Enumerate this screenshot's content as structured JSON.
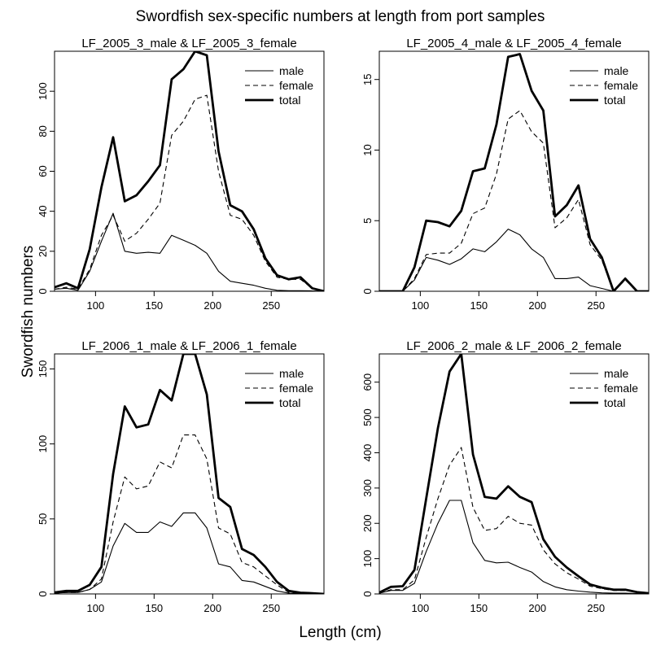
{
  "figure": {
    "title": "Swordfish sex-specific numbers at length from port samples",
    "xlabel": "Length (cm)",
    "ylabel": "Swordfish numbers"
  },
  "legend": {
    "position": "top-right",
    "entries": [
      {
        "key": "male",
        "label": "male",
        "style": "thin-solid"
      },
      {
        "key": "female",
        "label": "female",
        "style": "dashed"
      },
      {
        "key": "total",
        "label": "total",
        "style": "thick-solid"
      }
    ]
  },
  "chart_data": [
    {
      "type": "line",
      "title": "LF_2005_3_male & LF_2005_3_female",
      "xlim": [
        65,
        295
      ],
      "ylim": [
        0,
        120
      ],
      "xticks": [
        100,
        150,
        200,
        250
      ],
      "yticks": [
        0,
        20,
        40,
        60,
        80,
        100
      ],
      "grid": false,
      "x": [
        65,
        75,
        85,
        95,
        105,
        115,
        125,
        135,
        145,
        155,
        165,
        175,
        185,
        195,
        205,
        215,
        225,
        235,
        245,
        255,
        265,
        275,
        285,
        295
      ],
      "series": [
        {
          "name": "male",
          "values": [
            1,
            1.5,
            0.5,
            10,
            25,
            39,
            20,
            19,
            19.5,
            19,
            28,
            25.5,
            23,
            19,
            10,
            5,
            4,
            3,
            1.5,
            0.5,
            0.3,
            0.3,
            0.2,
            0
          ]
        },
        {
          "name": "female",
          "values": [
            1,
            2,
            1,
            11,
            28,
            38,
            25,
            29,
            36,
            44,
            78,
            85,
            96,
            98,
            60,
            38,
            36,
            28,
            15,
            7,
            6,
            6,
            1.5,
            0
          ]
        },
        {
          "name": "total",
          "values": [
            2,
            4,
            1.5,
            21,
            52,
            77,
            45,
            48,
            55,
            63,
            106,
            111,
            120,
            118,
            70,
            43,
            40,
            31,
            16.5,
            8,
            6,
            7,
            1.5,
            0
          ]
        }
      ]
    },
    {
      "type": "line",
      "title": "LF_2005_4_male & LF_2005_4_female",
      "xlim": [
        65,
        295
      ],
      "ylim": [
        0,
        17
      ],
      "xticks": [
        100,
        150,
        200,
        250
      ],
      "yticks": [
        0,
        5,
        10,
        15
      ],
      "grid": false,
      "x": [
        65,
        75,
        85,
        95,
        105,
        115,
        125,
        135,
        145,
        155,
        165,
        175,
        185,
        195,
        205,
        215,
        225,
        235,
        245,
        255,
        265,
        275,
        285,
        295
      ],
      "series": [
        {
          "name": "male",
          "values": [
            0,
            0,
            0,
            0.8,
            2.4,
            2.2,
            1.9,
            2.3,
            3,
            2.8,
            3.5,
            4.4,
            4,
            3,
            2.4,
            0.9,
            0.9,
            1,
            0.4,
            0.2,
            0,
            0,
            0,
            0
          ]
        },
        {
          "name": "female",
          "values": [
            0,
            0,
            0,
            0.9,
            2.6,
            2.7,
            2.7,
            3.4,
            5.5,
            5.9,
            8.3,
            12.2,
            12.8,
            11.3,
            10.5,
            4.5,
            5.2,
            6.5,
            3.3,
            2.2,
            0,
            0.8,
            0,
            0
          ]
        },
        {
          "name": "total",
          "values": [
            0,
            0,
            0,
            1.7,
            5,
            4.9,
            4.6,
            5.7,
            8.5,
            8.7,
            11.8,
            16.6,
            16.8,
            14.2,
            12.8,
            5.3,
            6.1,
            7.5,
            3.7,
            2.4,
            0,
            0.9,
            0,
            0
          ]
        }
      ]
    },
    {
      "type": "line",
      "title": "LF_2006_1_male & LF_2006_1_female",
      "xlim": [
        65,
        295
      ],
      "ylim": [
        0,
        160
      ],
      "xticks": [
        100,
        150,
        200,
        250
      ],
      "yticks": [
        0,
        50,
        100,
        150
      ],
      "grid": false,
      "x": [
        65,
        75,
        85,
        95,
        105,
        115,
        125,
        135,
        145,
        155,
        165,
        175,
        185,
        195,
        205,
        215,
        225,
        235,
        245,
        255,
        265,
        275,
        285,
        295
      ],
      "series": [
        {
          "name": "male",
          "values": [
            0.5,
            1,
            1,
            3,
            8,
            32,
            47,
            41,
            41,
            48,
            45,
            54,
            54,
            44,
            20,
            18,
            9,
            8,
            5,
            2,
            0.5,
            0.3,
            0.2,
            0
          ]
        },
        {
          "name": "female",
          "values": [
            0.5,
            1,
            1,
            3,
            10,
            48,
            78,
            70,
            72,
            88,
            84,
            106,
            106,
            90,
            44,
            40,
            21,
            18,
            12,
            6,
            1,
            0.5,
            0.3,
            0
          ]
        },
        {
          "name": "total",
          "values": [
            1,
            2,
            2,
            6,
            18,
            80,
            125,
            111,
            113,
            136,
            129,
            160,
            160,
            133,
            64,
            58,
            30,
            26,
            18,
            8,
            2,
            0.8,
            0.5,
            0
          ]
        }
      ]
    },
    {
      "type": "line",
      "title": "LF_2006_2_male & LF_2006_2_female",
      "xlim": [
        65,
        295
      ],
      "ylim": [
        0,
        680
      ],
      "xticks": [
        100,
        150,
        200,
        250
      ],
      "yticks": [
        0,
        100,
        200,
        300,
        400,
        500,
        600
      ],
      "grid": false,
      "x": [
        65,
        75,
        85,
        95,
        105,
        115,
        125,
        135,
        145,
        155,
        165,
        175,
        185,
        195,
        205,
        215,
        225,
        235,
        245,
        255,
        265,
        275,
        285,
        295
      ],
      "series": [
        {
          "name": "male",
          "values": [
            2,
            10,
            10,
            30,
            120,
            200,
            265,
            265,
            145,
            95,
            88,
            90,
            75,
            62,
            35,
            20,
            12,
            8,
            5,
            3,
            2,
            2,
            1,
            0
          ]
        },
        {
          "name": "female",
          "values": [
            2,
            12,
            12,
            40,
            160,
            270,
            365,
            415,
            245,
            180,
            185,
            220,
            200,
            195,
            125,
            85,
            60,
            42,
            22,
            15,
            10,
            10,
            5,
            2
          ]
        },
        {
          "name": "total",
          "values": [
            4,
            20,
            22,
            68,
            270,
            470,
            630,
            680,
            395,
            275,
            270,
            305,
            275,
            260,
            155,
            105,
            75,
            50,
            27,
            18,
            12,
            12,
            5,
            2
          ]
        }
      ]
    }
  ]
}
